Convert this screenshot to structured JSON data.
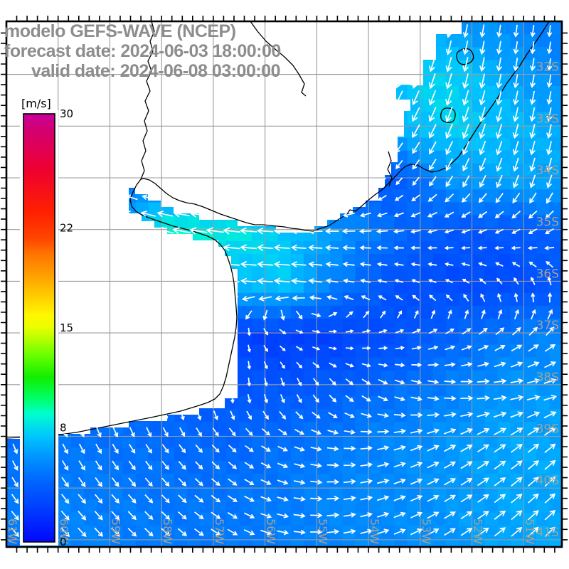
{
  "title": {
    "line1": "modelo GEFS-WAVE (NCEP)",
    "line2": "forecast date: 2024-06-03 18:00:00",
    "line3": "valid date: 2024-06-08 03:00:00"
  },
  "colorbar": {
    "unit": "[m/s]",
    "min": 0,
    "max": 30,
    "ticks": [
      {
        "value": 30,
        "label": "30"
      },
      {
        "value": 22,
        "label": "22"
      },
      {
        "value": 15,
        "label": "15"
      },
      {
        "value": 8,
        "label": "8"
      },
      {
        "value": 0,
        "label": "0"
      }
    ],
    "colormap": [
      {
        "t": 0.0,
        "color": "#0206fa"
      },
      {
        "t": 0.07,
        "color": "#0038ff"
      },
      {
        "t": 0.14,
        "color": "#0064ff"
      },
      {
        "t": 0.2,
        "color": "#0096ff"
      },
      {
        "t": 0.245,
        "color": "#00c4ff"
      },
      {
        "t": 0.3,
        "color": "#00ffcc"
      },
      {
        "t": 0.335,
        "color": "#00ff66"
      },
      {
        "t": 0.385,
        "color": "#11ee00"
      },
      {
        "t": 0.435,
        "color": "#66ff00"
      },
      {
        "t": 0.5,
        "color": "#e8ff00"
      },
      {
        "t": 0.53,
        "color": "#fff700"
      },
      {
        "t": 0.57,
        "color": "#ffd000"
      },
      {
        "t": 0.62,
        "color": "#ffa200"
      },
      {
        "t": 0.67,
        "color": "#ff7700"
      },
      {
        "t": 0.71,
        "color": "#ff4400"
      },
      {
        "t": 0.77,
        "color": "#ff2000"
      },
      {
        "t": 0.87,
        "color": "#ee0030"
      },
      {
        "t": 0.92,
        "color": "#e00055"
      },
      {
        "t": 0.96,
        "color": "#d4006e"
      },
      {
        "t": 1.0,
        "color": "#c8009b"
      }
    ]
  },
  "axes": {
    "lat": [
      {
        "label": "32S",
        "deg": 32
      },
      {
        "label": "33S",
        "deg": 33
      },
      {
        "label": "34S",
        "deg": 34
      },
      {
        "label": "35S",
        "deg": 35
      },
      {
        "label": "36S",
        "deg": 36
      },
      {
        "label": "37S",
        "deg": 37
      },
      {
        "label": "38S",
        "deg": 38
      },
      {
        "label": "39S",
        "deg": 39
      },
      {
        "label": "40S",
        "deg": 40
      },
      {
        "label": "41S",
        "deg": 41
      }
    ],
    "lon": [
      {
        "label": "61W",
        "deg": 61
      },
      {
        "label": "60W",
        "deg": 60
      },
      {
        "label": "59W",
        "deg": 59
      },
      {
        "label": "58W",
        "deg": 58
      },
      {
        "label": "57W",
        "deg": 57
      },
      {
        "label": "56W",
        "deg": 56
      },
      {
        "label": "55W",
        "deg": 55
      },
      {
        "label": "54W",
        "deg": 54
      },
      {
        "label": "53W",
        "deg": 53
      },
      {
        "label": "52W",
        "deg": 52
      },
      {
        "label": "51W",
        "deg": 51
      }
    ]
  },
  "field": {
    "units": "m/s",
    "speed": [
      [
        4.5,
        4.5,
        4.5,
        5,
        5.5,
        5.5,
        5.5,
        6,
        6,
        5.5,
        5
      ],
      [
        4.5,
        4.5,
        4.5,
        5,
        5.5,
        5.5,
        5.5,
        7.5,
        7.8,
        6.5,
        5.5
      ],
      [
        4.5,
        4.5,
        4.5,
        5,
        5,
        5,
        4.5,
        7,
        7.8,
        7.2,
        6.5
      ],
      [
        4.2,
        4.2,
        4.2,
        5,
        5.5,
        5,
        3.8,
        3.6,
        6,
        6.5,
        6.5
      ],
      [
        4.5,
        5.5,
        7.5,
        9,
        8.5,
        7.5,
        6,
        4.5,
        3.6,
        3.6,
        4.2
      ],
      [
        4.5,
        5,
        5.5,
        6,
        7,
        7.5,
        5,
        3.3,
        3,
        3,
        3.6
      ],
      [
        4.2,
        4.2,
        3.8,
        3.2,
        2.6,
        2.4,
        2.6,
        3.3,
        4.2,
        5,
        5.5
      ],
      [
        4.5,
        4.5,
        4.4,
        4,
        3.6,
        3.6,
        4,
        4.6,
        5.2,
        6,
        6
      ],
      [
        4.5,
        4.8,
        4.7,
        4.4,
        4.2,
        4.6,
        5,
        5.5,
        6,
        6.5,
        6.5
      ],
      [
        5,
        5.2,
        5,
        4.8,
        4.8,
        5,
        5.5,
        5.6,
        6,
        6.5,
        6.5
      ],
      [
        5,
        5.5,
        5.2,
        5,
        5,
        5.2,
        5.5,
        5.6,
        6,
        6.5,
        6.5
      ]
    ],
    "direction_deg": [
      [
        95,
        95,
        100,
        108,
        112,
        115,
        112,
        108,
        102,
        98,
        95
      ],
      [
        100,
        100,
        105,
        112,
        116,
        118,
        115,
        112,
        105,
        100,
        98
      ],
      [
        210,
        208,
        205,
        195,
        160,
        145,
        132,
        122,
        112,
        105,
        100
      ],
      [
        215,
        212,
        202,
        188,
        170,
        155,
        142,
        132,
        120,
        110,
        104
      ],
      [
        212,
        206,
        199,
        192,
        186,
        183,
        180,
        175,
        165,
        155,
        148
      ],
      [
        200,
        196,
        191,
        186,
        184,
        185,
        190,
        196,
        205,
        235,
        262
      ],
      [
        150,
        148,
        145,
        135,
        100,
        30,
        355,
        345,
        335,
        325,
        318
      ],
      [
        90,
        90,
        92,
        95,
        90,
        75,
        50,
        25,
        8,
        355,
        345
      ],
      [
        70,
        65,
        60,
        55,
        45,
        25,
        5,
        345,
        332,
        325,
        320
      ],
      [
        55,
        52,
        50,
        45,
        35,
        15,
        355,
        340,
        330,
        322,
        316
      ],
      [
        48,
        46,
        44,
        40,
        30,
        10,
        350,
        338,
        328,
        320,
        315
      ]
    ]
  }
}
